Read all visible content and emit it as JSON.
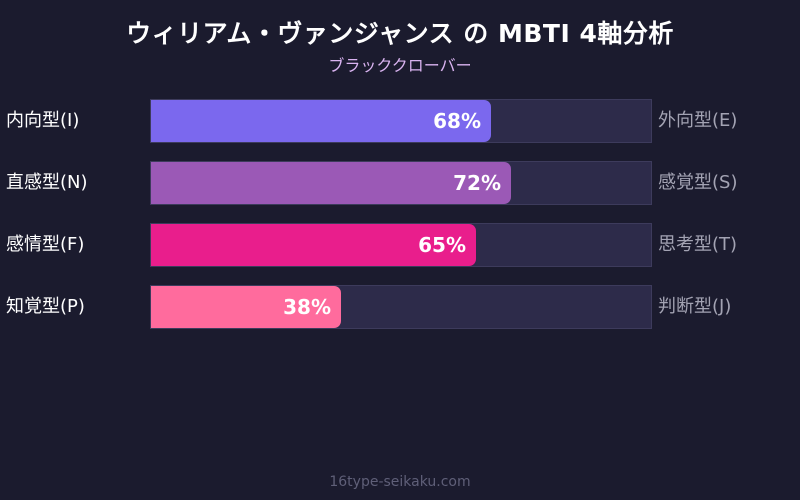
{
  "header": {
    "title": "ウィリアム・ヴァンジャンス の MBTI 4軸分析",
    "subtitle": "ブラッククローバー"
  },
  "footer": {
    "site": "16type-seikaku.com"
  },
  "chart_data": {
    "type": "bar",
    "orientation": "horizontal",
    "title": "ウィリアム・ヴァンジャンス の MBTI 4軸分析",
    "subtitle": "ブラッククローバー",
    "xlim": [
      0,
      100
    ],
    "unit": "%",
    "bars": [
      {
        "left_label": "内向型(I)",
        "right_label": "外向型(E)",
        "value": 68,
        "value_label": "68%",
        "color": "#7b68ee"
      },
      {
        "left_label": "直感型(N)",
        "right_label": "感覚型(S)",
        "value": 72,
        "value_label": "72%",
        "color": "#9b59b6"
      },
      {
        "left_label": "感情型(F)",
        "right_label": "思考型(T)",
        "value": 65,
        "value_label": "65%",
        "color": "#e91e8c"
      },
      {
        "left_label": "知覚型(P)",
        "right_label": "判断型(J)",
        "value": 38,
        "value_label": "38%",
        "color": "#ff6b9d"
      }
    ]
  }
}
